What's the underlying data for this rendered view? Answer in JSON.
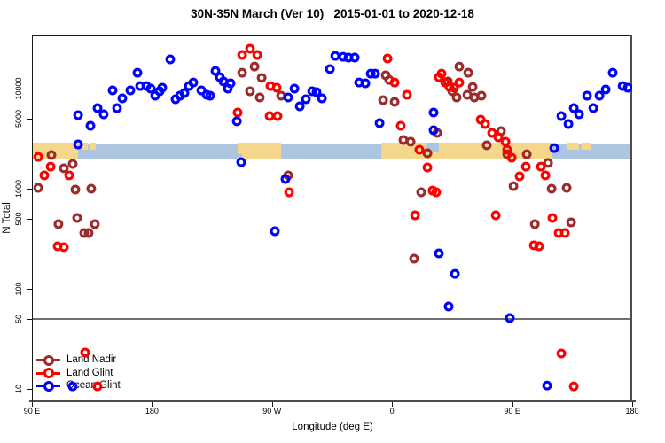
{
  "chart_data": {
    "type": "scatter",
    "title": "30N-35N March (Ver 10)   2015-01-01 to 2020-12-18",
    "xlabel": "Longitude (deg E)",
    "ylabel": "N Total",
    "x_axis": {
      "range_deg_continuous": [
        90,
        540
      ],
      "ticks": [
        {
          "value": 90,
          "label": "90 E"
        },
        {
          "value": 180,
          "label": "180"
        },
        {
          "value": 270,
          "label": "90 W"
        },
        {
          "value": 360,
          "label": "0"
        },
        {
          "value": 450,
          "label": "90 E"
        },
        {
          "value": 540,
          "label": "180"
        }
      ]
    },
    "y_axis": {
      "scale": "log",
      "range": [
        7.5,
        34000
      ],
      "ticks": [
        {
          "value": 10,
          "label": "10"
        },
        {
          "value": 50,
          "label": "50"
        },
        {
          "value": 100,
          "label": "100"
        },
        {
          "value": 500,
          "label": "500"
        },
        {
          "value": 1000,
          "label": "1000"
        },
        {
          "value": 5000,
          "label": "5000"
        },
        {
          "value": 10000,
          "label": "10000"
        }
      ]
    },
    "reference_line_y": 50,
    "map_band": {
      "description": "world land/ocean strip for 30N-35N latitude band",
      "ocean_color": "#adc5e0",
      "land_color": "#f5d78c",
      "n_range": [
        1960,
        2770
      ],
      "land_segments_deg": [
        [
          90,
          124.6
        ],
        [
          244.2,
          276.8
        ],
        [
          352.0,
          480.3
        ]
      ],
      "land_patches_top_deg": [
        [
          127.5,
          132
        ],
        [
          133.5,
          138
        ],
        [
          491,
          500
        ],
        [
          502,
          509
        ]
      ],
      "ocean_notches_top_deg": [
        [
          386,
          395
        ]
      ],
      "ocean_notches_bottom_deg": [
        [
          244.2,
          247.5
        ]
      ]
    },
    "legend": {
      "position": "bottom-left"
    },
    "series": [
      {
        "name": "Land Nadir",
        "color": "#9c2b2b",
        "points": [
          [
            94.7,
            1020
          ],
          [
            104.6,
            2170
          ],
          [
            109.9,
            443
          ],
          [
            113.9,
            1600
          ],
          [
            120.6,
            1770
          ],
          [
            122.6,
            980
          ],
          [
            123.9,
            510
          ],
          [
            129.2,
            361
          ],
          [
            132.5,
            361
          ],
          [
            134.5,
            1000
          ],
          [
            137.2,
            443
          ],
          [
            247.6,
            14400
          ],
          [
            253.5,
            9400
          ],
          [
            256.9,
            16600
          ],
          [
            260.8,
            8160
          ],
          [
            262.2,
            12800
          ],
          [
            276.8,
            8500
          ],
          [
            282.1,
            1360
          ],
          [
            353.3,
            7670
          ],
          [
            355.2,
            13600
          ],
          [
            357.9,
            12200
          ],
          [
            361.9,
            7360
          ],
          [
            368.5,
            3070
          ],
          [
            373.9,
            2950
          ],
          [
            376.5,
            200
          ],
          [
            381.8,
            922
          ],
          [
            386.5,
            2260
          ],
          [
            393.8,
            3610
          ],
          [
            401.8,
            11800
          ],
          [
            405.1,
            9400
          ],
          [
            408.4,
            8160
          ],
          [
            410.4,
            16600
          ],
          [
            416.4,
            8670
          ],
          [
            417.1,
            14400
          ],
          [
            420.4,
            10400
          ],
          [
            421.7,
            8160
          ],
          [
            427.0,
            8500
          ],
          [
            431.0,
            2720
          ],
          [
            441.7,
            3760
          ],
          [
            446.3,
            2210
          ],
          [
            451.0,
            1060
          ],
          [
            461.0,
            2210
          ],
          [
            467.0,
            443
          ],
          [
            476.9,
            1810
          ],
          [
            479.6,
            1000
          ],
          [
            490.9,
            1020
          ],
          [
            494.2,
            461
          ]
        ]
      },
      {
        "name": "Land Glint",
        "color": "#ff0000",
        "points": [
          [
            94.7,
            2080
          ],
          [
            99.3,
            1360
          ],
          [
            104.0,
            1660
          ],
          [
            109.3,
            266
          ],
          [
            113.9,
            261
          ],
          [
            117.9,
            1360
          ],
          [
            129.9,
            23.1
          ],
          [
            139.2,
            10.6
          ],
          [
            244.2,
            5770
          ],
          [
            247.6,
            21700
          ],
          [
            253.5,
            25000
          ],
          [
            258.9,
            21700
          ],
          [
            268.2,
            5320
          ],
          [
            268.8,
            10600
          ],
          [
            273.5,
            10200
          ],
          [
            274.1,
            5320
          ],
          [
            282.8,
            922
          ],
          [
            356.6,
            20000
          ],
          [
            361.9,
            11500
          ],
          [
            366.5,
            4250
          ],
          [
            371.2,
            8670
          ],
          [
            377.2,
            543
          ],
          [
            380.5,
            2450
          ],
          [
            386.5,
            1630
          ],
          [
            390.4,
            959
          ],
          [
            393.1,
            922
          ],
          [
            395.1,
            13000
          ],
          [
            397.1,
            14100
          ],
          [
            399.8,
            11500
          ],
          [
            403.1,
            10400
          ],
          [
            406.4,
            10200
          ],
          [
            410.4,
            11500
          ],
          [
            426.4,
            4900
          ],
          [
            429.7,
            4430
          ],
          [
            435.0,
            3610
          ],
          [
            437.7,
            543
          ],
          [
            439.7,
            3260
          ],
          [
            445.0,
            2950
          ],
          [
            446.3,
            2450
          ],
          [
            449.7,
            2040
          ],
          [
            455.6,
            1330
          ],
          [
            460.3,
            1660
          ],
          [
            466.3,
            272
          ],
          [
            470.2,
            266
          ],
          [
            471.6,
            1660
          ],
          [
            474.9,
            1360
          ],
          [
            480.2,
            510
          ],
          [
            484.9,
            361
          ],
          [
            486.9,
            22.6
          ],
          [
            489.5,
            361
          ],
          [
            496.2,
            10.6
          ]
        ]
      },
      {
        "name": "Ocean Glint",
        "color": "#0000ff",
        "points": [
          [
            120.6,
            10.6
          ],
          [
            124.6,
            5430
          ],
          [
            124.6,
            2770
          ],
          [
            133.9,
            4250
          ],
          [
            139.2,
            6390
          ],
          [
            143.8,
            5540
          ],
          [
            150.5,
            9600
          ],
          [
            153.8,
            6390
          ],
          [
            157.8,
            7990
          ],
          [
            163.8,
            9600
          ],
          [
            169.1,
            14400
          ],
          [
            171.1,
            10600
          ],
          [
            175.8,
            10600
          ],
          [
            179.1,
            10000
          ],
          [
            182.4,
            8500
          ],
          [
            185.7,
            9400
          ],
          [
            187.7,
            10200
          ],
          [
            193.7,
            19600
          ],
          [
            197.7,
            7830
          ],
          [
            201.0,
            8500
          ],
          [
            204.3,
            9040
          ],
          [
            207.7,
            10600
          ],
          [
            211.0,
            11500
          ],
          [
            217.0,
            9600
          ],
          [
            221.0,
            8670
          ],
          [
            223.6,
            8500
          ],
          [
            227.6,
            15000
          ],
          [
            230.9,
            13000
          ],
          [
            233.6,
            11800
          ],
          [
            236.9,
            10000
          ],
          [
            238.9,
            11300
          ],
          [
            243.6,
            4710
          ],
          [
            246.9,
            1840
          ],
          [
            272.1,
            376
          ],
          [
            280.1,
            1250
          ],
          [
            282.1,
            8160
          ],
          [
            286.8,
            10000
          ],
          [
            290.8,
            6650
          ],
          [
            295.4,
            7830
          ],
          [
            300.1,
            9400
          ],
          [
            303.4,
            9220
          ],
          [
            307.4,
            7990
          ],
          [
            313.4,
            15700
          ],
          [
            317.4,
            21200
          ],
          [
            323.3,
            20800
          ],
          [
            327.3,
            20400
          ],
          [
            332.0,
            20400
          ],
          [
            335.3,
            11500
          ],
          [
            340.0,
            11300
          ],
          [
            344.0,
            14100
          ],
          [
            347.3,
            14100
          ],
          [
            350.6,
            4520
          ],
          [
            391.1,
            5770
          ],
          [
            391.1,
            3840
          ],
          [
            395.1,
            226
          ],
          [
            402.4,
            66.5
          ],
          [
            407.1,
            141
          ],
          [
            448.3,
            51
          ],
          [
            476.2,
            10.8
          ],
          [
            481.5,
            2550
          ],
          [
            486.9,
            5320
          ],
          [
            492.2,
            4430
          ],
          [
            496.2,
            6390
          ],
          [
            500.2,
            5540
          ],
          [
            506.2,
            8500
          ],
          [
            510.8,
            6390
          ],
          [
            515.5,
            8500
          ],
          [
            520.1,
            9800
          ],
          [
            525.4,
            14400
          ],
          [
            532.8,
            10600
          ],
          [
            536.7,
            10200
          ]
        ]
      }
    ],
    "frame_colors": {
      "thin": "#1a1a1a",
      "thick": "#4d4d4d"
    }
  }
}
